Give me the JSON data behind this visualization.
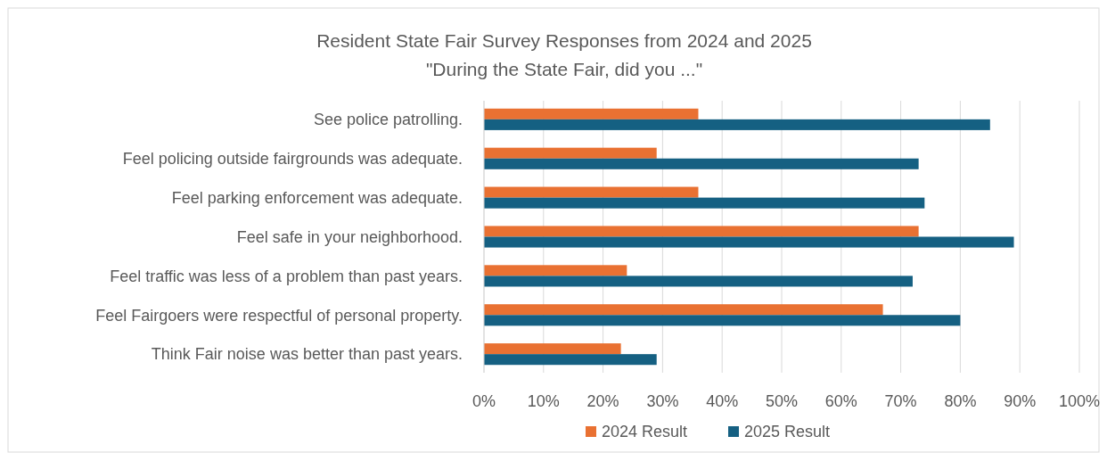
{
  "chart_data": {
    "type": "bar",
    "orientation": "horizontal",
    "title": "Resident State Fair Survey Responses from 2024 and 2025",
    "subtitle": "\"During the State Fair, did you ...\"",
    "categories": [
      "See police patrolling.",
      "Feel policing outside fairgrounds was adequate.",
      "Feel parking enforcement was adequate.",
      "Feel safe in your neighborhood.",
      "Feel traffic was less of a problem than past years.",
      "Feel Fairgoers were respectful of personal property.",
      "Think Fair noise was better than past years."
    ],
    "series": [
      {
        "name": "2024 Result",
        "color": "#e97132",
        "values": [
          36,
          29,
          36,
          73,
          24,
          67,
          23
        ]
      },
      {
        "name": "2025 Result",
        "color": "#156082",
        "values": [
          85,
          73,
          74,
          89,
          72,
          80,
          29
        ]
      }
    ],
    "xlim": [
      0,
      100
    ],
    "xticks": [
      {
        "value": 0,
        "label": "0%"
      },
      {
        "value": 10,
        "label": "10%"
      },
      {
        "value": 20,
        "label": "20%"
      },
      {
        "value": 30,
        "label": "30%"
      },
      {
        "value": 40,
        "label": "40%"
      },
      {
        "value": 50,
        "label": "50%"
      },
      {
        "value": 60,
        "label": "60%"
      },
      {
        "value": 70,
        "label": "70%"
      },
      {
        "value": 80,
        "label": "80%"
      },
      {
        "value": 90,
        "label": "90%"
      },
      {
        "value": 100,
        "label": "100%"
      }
    ],
    "grid": "x",
    "legend": "bottom"
  }
}
